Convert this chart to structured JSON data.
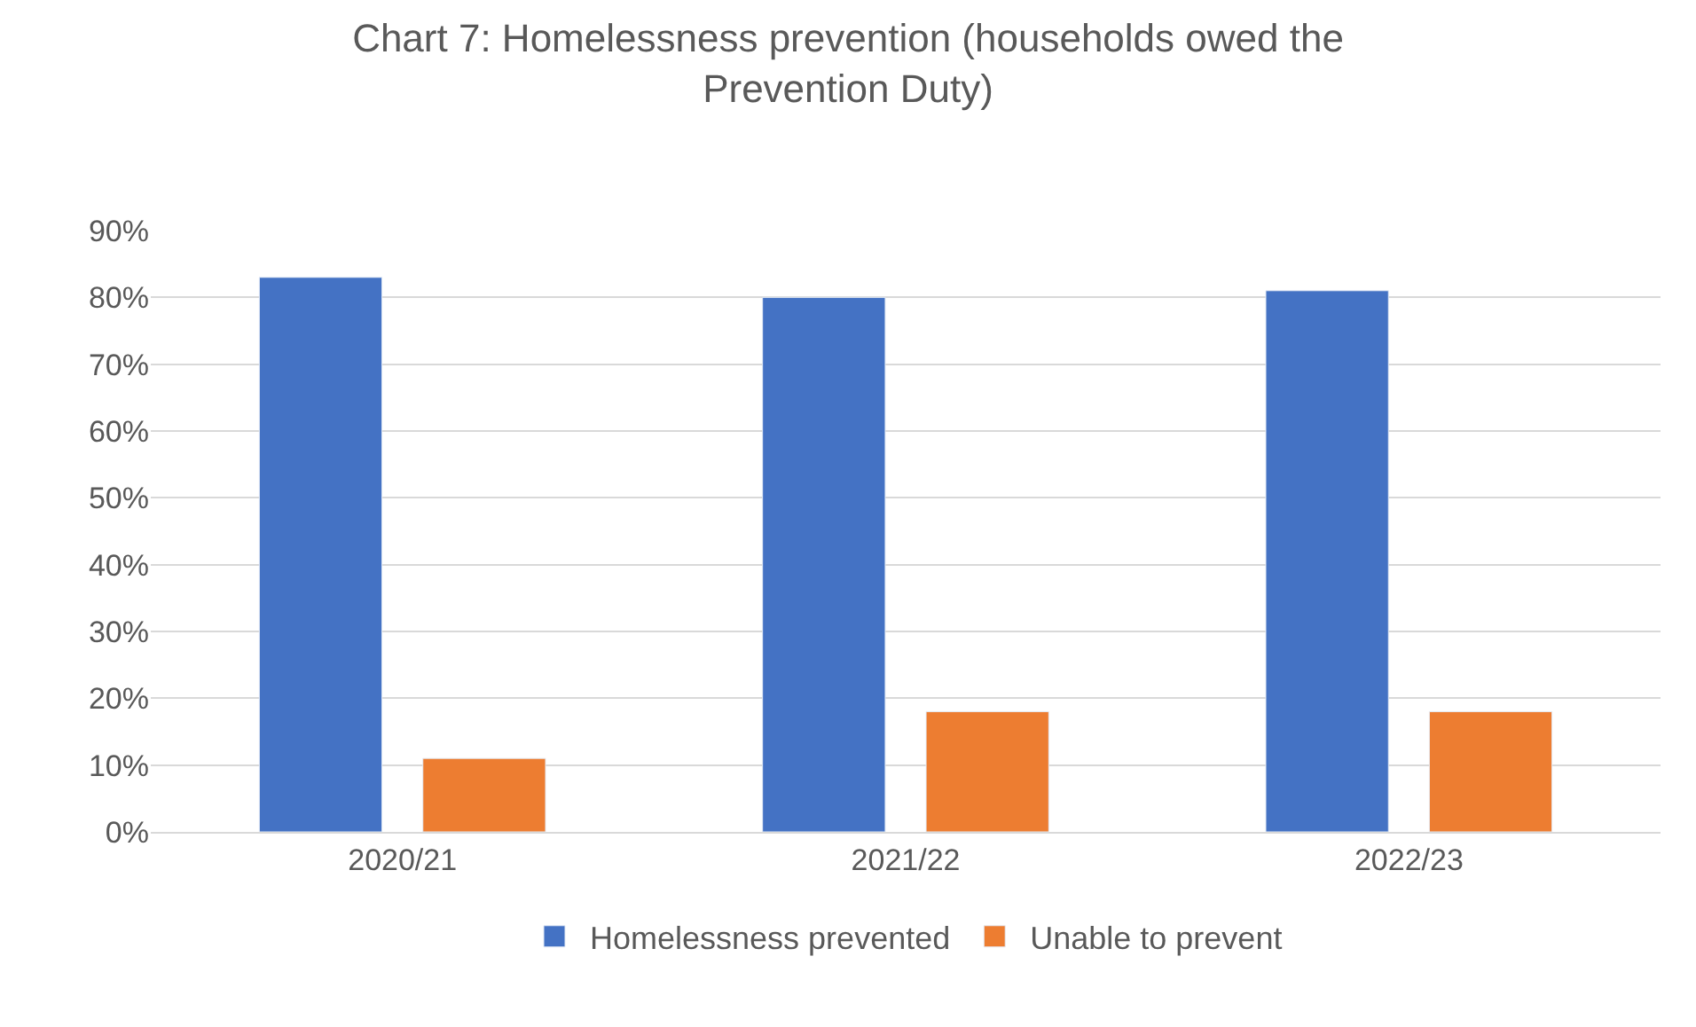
{
  "chart_data": {
    "type": "bar",
    "title": "Chart 7: Homelessness prevention (households owed the Prevention Duty)",
    "categories": [
      "2020/21",
      "2021/22",
      "2022/23"
    ],
    "series": [
      {
        "name": "Homelessness prevented",
        "color": "#4472c4",
        "values": [
          83,
          80,
          81
        ]
      },
      {
        "name": "Unable to prevent",
        "color": "#ed7d31",
        "values": [
          11,
          18,
          18
        ]
      }
    ],
    "ylim": [
      0,
      90
    ],
    "yticks": [
      {
        "value": 0,
        "label": "0%"
      },
      {
        "value": 10,
        "label": "10%"
      },
      {
        "value": 20,
        "label": "20%"
      },
      {
        "value": 30,
        "label": "30%"
      },
      {
        "value": 40,
        "label": "40%"
      },
      {
        "value": 50,
        "label": "50%"
      },
      {
        "value": 60,
        "label": "60%"
      },
      {
        "value": 70,
        "label": "70%"
      },
      {
        "value": 80,
        "label": "80%"
      },
      {
        "value": 90,
        "label": "90%"
      }
    ],
    "grid": "y",
    "legend": "bottom"
  }
}
